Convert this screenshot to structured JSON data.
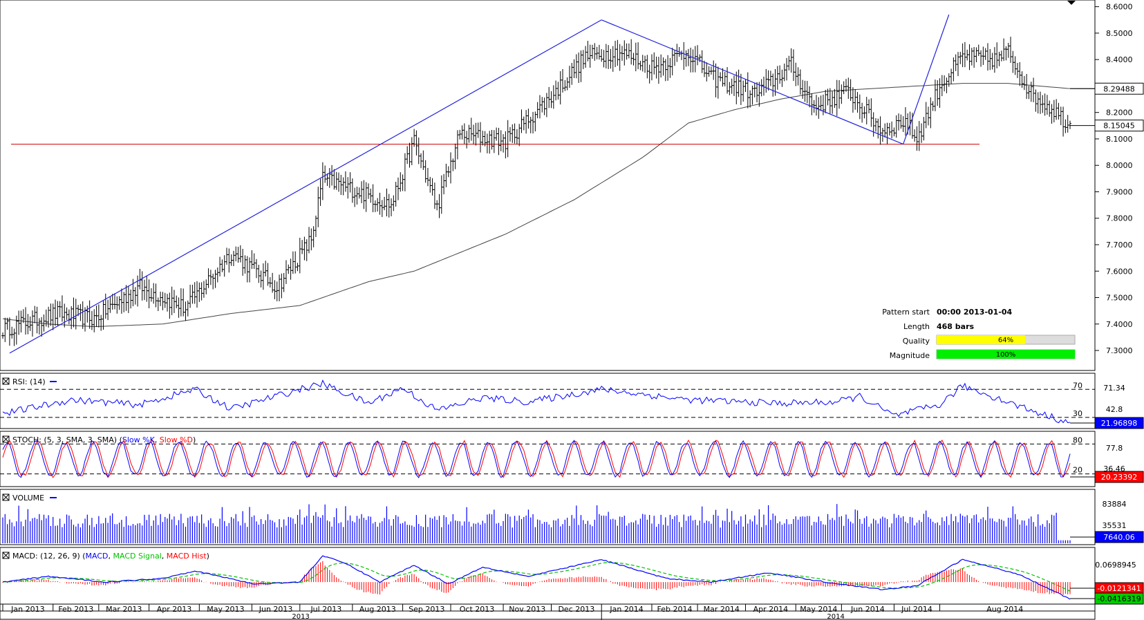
{
  "chart_data": [
    {
      "panel": "price",
      "type": "ohlc",
      "ylim": [
        7.24,
        8.62
      ],
      "y_ticks": [
        "8.6000",
        "8.5000",
        "8.4000",
        "8.3000",
        "8.2000",
        "8.1000",
        "8.0000",
        "7.9000",
        "7.8000",
        "7.7000",
        "7.6000",
        "7.5000",
        "7.4000",
        "7.3000"
      ],
      "current_value": "8.15045",
      "moving_average_value": "8.29488",
      "price_anchors": {
        "bars": [
          0,
          24,
          40,
          60,
          80,
          100,
          120,
          135,
          140,
          150,
          170,
          180,
          190,
          200,
          220,
          240,
          255,
          270,
          285,
          300,
          310,
          330,
          345,
          355,
          370,
          385,
          395,
          400,
          410,
          420,
          435,
          440,
          450,
          460,
          467
        ],
        "close": [
          7.38,
          7.44,
          7.42,
          7.54,
          7.46,
          7.67,
          7.54,
          7.72,
          7.95,
          7.92,
          7.85,
          8.09,
          7.84,
          8.12,
          8.09,
          8.26,
          8.41,
          8.43,
          8.37,
          8.43,
          8.33,
          8.27,
          8.38,
          8.22,
          8.28,
          8.13,
          8.17,
          8.1,
          8.3,
          8.41,
          8.4,
          8.43,
          8.27,
          8.21,
          8.15
        ]
      },
      "moving_average": {
        "bars": [
          0,
          20,
          40,
          70,
          100,
          130,
          160,
          180,
          200,
          220,
          250,
          280,
          300,
          320,
          340,
          360,
          380,
          400,
          420,
          440,
          467
        ],
        "values": [
          7.42,
          7.4,
          7.39,
          7.4,
          7.44,
          7.47,
          7.56,
          7.6,
          7.67,
          7.74,
          7.87,
          8.03,
          8.16,
          8.21,
          8.25,
          8.28,
          8.29,
          8.3,
          8.31,
          8.31,
          8.29
        ]
      },
      "support_level": 8.08,
      "pattern_lines": [
        {
          "from_bar": 3,
          "from_price": 7.29,
          "to_bar": 262,
          "to_price": 8.55
        },
        {
          "from_bar": 262,
          "from_price": 8.55,
          "to_bar": 394,
          "to_price": 8.08
        },
        {
          "from_bar": 394,
          "from_price": 8.08,
          "to_bar": 414,
          "to_price": 8.57
        }
      ],
      "pattern_info": {
        "pattern_start_label": "Pattern start",
        "pattern_start_value": "00:00 2013-01-04",
        "length_label": "Length",
        "length_value": "468 bars",
        "quality_label": "Quality",
        "quality_value": "64%",
        "quality_fraction": 0.64,
        "magnitude_label": "Magnitude",
        "magnitude_value": "100%",
        "magnitude_fraction": 1.0
      }
    },
    {
      "panel": "rsi",
      "type": "line",
      "label": "RSI: (14)",
      "ylim": [
        18,
        88
      ],
      "levels": [
        70,
        30
      ],
      "level_labels": [
        "70",
        "30"
      ],
      "right_labels": [
        "71.34",
        "42.8"
      ],
      "current_value": "21.96898",
      "anchors": {
        "bars": [
          0,
          30,
          60,
          84,
          100,
          130,
          140,
          160,
          175,
          190,
          210,
          230,
          262,
          300,
          340,
          365,
          375,
          390,
          410,
          420,
          450,
          467
        ],
        "values": [
          35,
          55,
          48,
          70,
          42,
          70,
          78,
          50,
          72,
          40,
          58,
          52,
          70,
          55,
          50,
          52,
          60,
          32,
          48,
          75,
          40,
          22
        ]
      }
    },
    {
      "panel": "stoch",
      "type": "line",
      "label": "STOCH: (5, 3, SMA, 3, SMA)",
      "series_labels": [
        "Slow %K",
        "Slow %D"
      ],
      "series_colors": [
        "#0000ff",
        "#ff0000"
      ],
      "ylim": [
        0,
        100
      ],
      "levels": [
        80,
        20
      ],
      "level_labels": [
        "80",
        "20"
      ],
      "right_labels": [
        "77.8",
        "36.46"
      ],
      "current_value": "20.23392"
    },
    {
      "panel": "volume",
      "type": "bar",
      "label": "VOLUME",
      "ylim": [
        0,
        130000
      ],
      "right_labels": [
        "83884",
        "35531"
      ],
      "current_value": "7640.06"
    },
    {
      "panel": "macd",
      "type": "line",
      "label": "MACD: (12, 26, 9)",
      "series_labels": [
        "MACD",
        "MACD Signal",
        "MACD Hist"
      ],
      "series_colors": [
        "#0000ff",
        "#00c000",
        "#ff0000"
      ],
      "ylim": [
        -0.055,
        0.085
      ],
      "right_labels": [
        "0.0698945"
      ],
      "current_values": [
        "-0.0121341",
        "-0.0416319"
      ],
      "anchors": {
        "bars": [
          0,
          20,
          45,
          70,
          84,
          110,
          130,
          140,
          150,
          165,
          180,
          195,
          210,
          230,
          262,
          290,
          310,
          335,
          360,
          385,
          400,
          410,
          420,
          445,
          467
        ],
        "values": [
          0.0,
          0.015,
          0.0,
          0.01,
          0.03,
          -0.005,
          0.0,
          0.07,
          0.05,
          0.0,
          0.045,
          -0.005,
          0.04,
          0.015,
          0.06,
          0.01,
          0.0,
          0.025,
          0.0,
          -0.02,
          -0.01,
          0.025,
          0.06,
          0.02,
          -0.045
        ]
      }
    }
  ],
  "x_axis": {
    "months": [
      "Jan 2013",
      "Feb 2013",
      "Mar 2013",
      "Apr 2013",
      "May 2013",
      "Jun 2013",
      "Jul 2013",
      "Aug 2013",
      "Sep 2013",
      "Oct 2013",
      "Nov 2013",
      "Dec 2013",
      "Jan 2014",
      "Feb 2014",
      "Mar 2014",
      "Apr 2014",
      "May 2014",
      "Jun 2014",
      "Jul 2014",
      "Aug 2014"
    ],
    "month_start_bars": [
      0,
      22,
      42,
      64,
      86,
      109,
      130,
      153,
      175,
      196,
      219,
      240,
      262,
      284,
      304,
      325,
      347,
      367,
      390,
      410
    ],
    "years": [
      "2013",
      "2014"
    ]
  },
  "total_bars": 468
}
